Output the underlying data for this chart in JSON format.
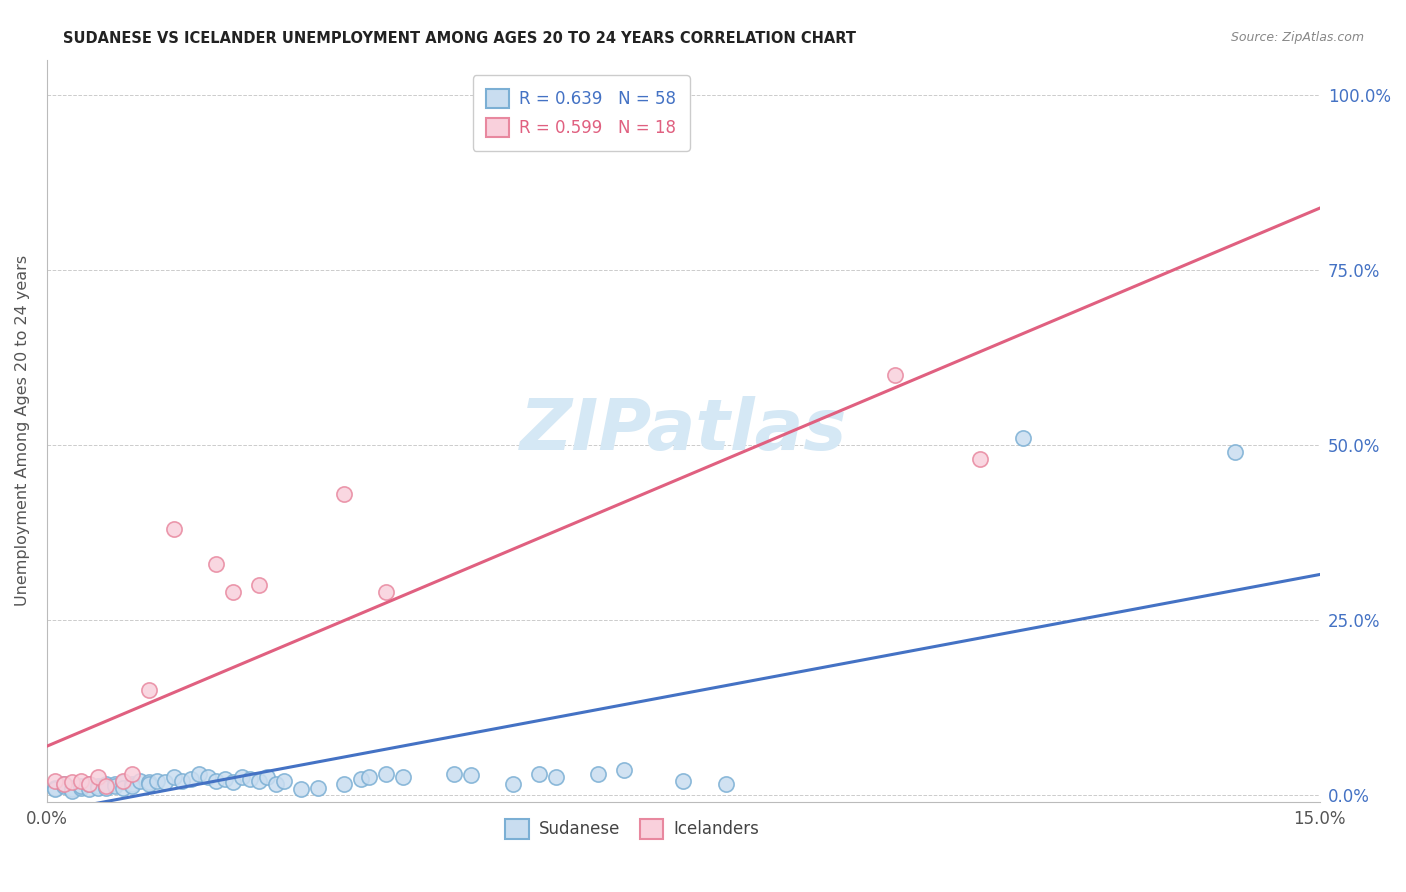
{
  "title": "SUDANESE VS ICELANDER UNEMPLOYMENT AMONG AGES 20 TO 24 YEARS CORRELATION CHART",
  "source": "Source: ZipAtlas.com",
  "ylabel_label": "Unemployment Among Ages 20 to 24 years",
  "legend_bottom": [
    "Sudanese",
    "Icelanders"
  ],
  "sudanese_face_color": "#c9ddf0",
  "sudanese_edge_color": "#7bafd4",
  "icelander_face_color": "#f9d0dc",
  "icelander_edge_color": "#e8889f",
  "blue_line_color": "#4472c4",
  "pink_line_color": "#e06080",
  "watermark_color": "#d5e8f5",
  "background_color": "#ffffff",
  "grid_color": "#cccccc",
  "sudanese_points": [
    [
      0.001,
      0.01
    ],
    [
      0.001,
      0.008
    ],
    [
      0.002,
      0.012
    ],
    [
      0.002,
      0.015
    ],
    [
      0.003,
      0.01
    ],
    [
      0.003,
      0.008
    ],
    [
      0.003,
      0.005
    ],
    [
      0.004,
      0.01
    ],
    [
      0.004,
      0.012
    ],
    [
      0.005,
      0.008
    ],
    [
      0.005,
      0.015
    ],
    [
      0.006,
      0.012
    ],
    [
      0.006,
      0.01
    ],
    [
      0.007,
      0.015
    ],
    [
      0.007,
      0.01
    ],
    [
      0.008,
      0.015
    ],
    [
      0.008,
      0.012
    ],
    [
      0.009,
      0.018
    ],
    [
      0.009,
      0.01
    ],
    [
      0.01,
      0.015
    ],
    [
      0.01,
      0.012
    ],
    [
      0.011,
      0.02
    ],
    [
      0.012,
      0.018
    ],
    [
      0.012,
      0.015
    ],
    [
      0.013,
      0.02
    ],
    [
      0.014,
      0.018
    ],
    [
      0.015,
      0.025
    ],
    [
      0.016,
      0.02
    ],
    [
      0.017,
      0.022
    ],
    [
      0.018,
      0.03
    ],
    [
      0.019,
      0.025
    ],
    [
      0.02,
      0.02
    ],
    [
      0.021,
      0.022
    ],
    [
      0.022,
      0.018
    ],
    [
      0.023,
      0.025
    ],
    [
      0.024,
      0.022
    ],
    [
      0.025,
      0.02
    ],
    [
      0.026,
      0.025
    ],
    [
      0.027,
      0.015
    ],
    [
      0.028,
      0.02
    ],
    [
      0.03,
      0.008
    ],
    [
      0.032,
      0.01
    ],
    [
      0.035,
      0.015
    ],
    [
      0.037,
      0.022
    ],
    [
      0.038,
      0.025
    ],
    [
      0.04,
      0.03
    ],
    [
      0.042,
      0.025
    ],
    [
      0.048,
      0.03
    ],
    [
      0.05,
      0.028
    ],
    [
      0.055,
      0.015
    ],
    [
      0.058,
      0.03
    ],
    [
      0.06,
      0.025
    ],
    [
      0.065,
      0.03
    ],
    [
      0.068,
      0.035
    ],
    [
      0.075,
      0.02
    ],
    [
      0.08,
      0.015
    ],
    [
      0.115,
      0.51
    ],
    [
      0.14,
      0.49
    ]
  ],
  "icelander_points": [
    [
      0.001,
      0.02
    ],
    [
      0.002,
      0.015
    ],
    [
      0.003,
      0.018
    ],
    [
      0.004,
      0.02
    ],
    [
      0.005,
      0.015
    ],
    [
      0.006,
      0.025
    ],
    [
      0.007,
      0.012
    ],
    [
      0.009,
      0.02
    ],
    [
      0.01,
      0.03
    ],
    [
      0.012,
      0.15
    ],
    [
      0.015,
      0.38
    ],
    [
      0.02,
      0.33
    ],
    [
      0.022,
      0.29
    ],
    [
      0.025,
      0.3
    ],
    [
      0.035,
      0.43
    ],
    [
      0.04,
      0.29
    ],
    [
      0.1,
      0.6
    ],
    [
      0.11,
      0.48
    ]
  ],
  "xlim": [
    0.0,
    0.15
  ],
  "ylim": [
    -0.01,
    1.05
  ],
  "yticks": [
    0.0,
    0.25,
    0.5,
    0.75,
    1.0
  ],
  "xticks": [
    0.0,
    0.025,
    0.05,
    0.075,
    0.1,
    0.125,
    0.15
  ],
  "sudanese_R": 0.639,
  "icelander_R": 0.599,
  "sudanese_N": 58,
  "icelander_N": 18,
  "legend_R_blue_color": "#4472c4",
  "legend_R_pink_color": "#e06080",
  "ytick_color": "#4472c4",
  "title_color": "#222222",
  "source_color": "#888888",
  "label_color": "#555555"
}
